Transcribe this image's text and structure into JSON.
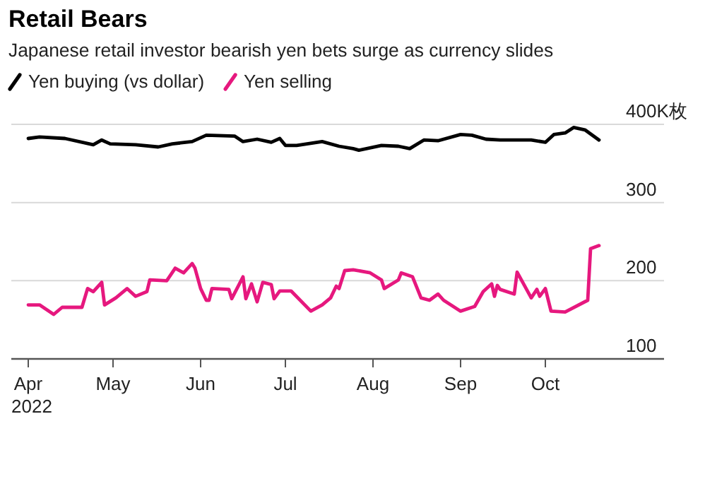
{
  "chart_data": {
    "type": "line",
    "title": "Retail Bears",
    "subtitle": "Japanese retail investor bearish yen bets surge as currency slides",
    "legend": "top left",
    "grid": "y",
    "line_style": "solid",
    "marker": "none",
    "xlim": [
      "2022-03-26",
      "2022-11-12"
    ],
    "ylim": [
      100,
      400
    ],
    "xticks": [
      {
        "value": "2022-04-01",
        "label": "Apr\n2022"
      },
      {
        "value": "2022-05-01",
        "label": "May"
      },
      {
        "value": "2022-06-01",
        "label": "Jun"
      },
      {
        "value": "2022-07-01",
        "label": "Jul"
      },
      {
        "value": "2022-08-01",
        "label": "Aug"
      },
      {
        "value": "2022-09-01",
        "label": "Sep"
      },
      {
        "value": "2022-10-01",
        "label": "Oct"
      }
    ],
    "yticks": [
      {
        "value": 100,
        "label": "100"
      },
      {
        "value": 200,
        "label": "200"
      },
      {
        "value": 300,
        "label": "300"
      },
      {
        "value": 400,
        "label": "400K枚"
      }
    ],
    "series": [
      {
        "name": "Yen buying (vs dollar)",
        "color": "#000000",
        "x": [
          "2022-04-01",
          "2022-04-05",
          "2022-04-14",
          "2022-04-24",
          "2022-04-27",
          "2022-04-30",
          "2022-05-09",
          "2022-05-17",
          "2022-05-22",
          "2022-05-29",
          "2022-06-03",
          "2022-06-13",
          "2022-06-16",
          "2022-06-21",
          "2022-06-26",
          "2022-06-29",
          "2022-07-01",
          "2022-07-05",
          "2022-07-14",
          "2022-07-20",
          "2022-07-25",
          "2022-07-27",
          "2022-08-04",
          "2022-08-10",
          "2022-08-14",
          "2022-08-19",
          "2022-08-24",
          "2022-09-01",
          "2022-09-05",
          "2022-09-10",
          "2022-09-15",
          "2022-09-26",
          "2022-10-01",
          "2022-10-04",
          "2022-10-08",
          "2022-10-11",
          "2022-10-15",
          "2022-10-20"
        ],
        "values": [
          382,
          384,
          382,
          374,
          380,
          375,
          374,
          371,
          375,
          378,
          386,
          385,
          378,
          381,
          377,
          382,
          373,
          373,
          378,
          372,
          369,
          367,
          373,
          372,
          369,
          380,
          379,
          387,
          386,
          381,
          380,
          380,
          377,
          387,
          389,
          396,
          393,
          380
        ]
      },
      {
        "name": "Yen selling",
        "color": "#e6187e",
        "x": [
          "2022-04-01",
          "2022-04-05",
          "2022-04-10",
          "2022-04-13",
          "2022-04-20",
          "2022-04-22",
          "2022-04-24",
          "2022-04-27",
          "2022-04-28",
          "2022-05-02",
          "2022-05-06",
          "2022-05-09",
          "2022-05-13",
          "2022-05-14",
          "2022-05-20",
          "2022-05-23",
          "2022-05-26",
          "2022-05-29",
          "2022-05-30",
          "2022-06-01",
          "2022-06-03",
          "2022-06-04",
          "2022-06-05",
          "2022-06-11",
          "2022-06-12",
          "2022-06-16",
          "2022-06-17",
          "2022-06-19",
          "2022-06-21",
          "2022-06-23",
          "2022-06-26",
          "2022-06-27",
          "2022-06-29",
          "2022-07-03",
          "2022-07-10",
          "2022-07-14",
          "2022-07-17",
          "2022-07-19",
          "2022-07-20",
          "2022-07-22",
          "2022-07-25",
          "2022-07-31",
          "2022-08-04",
          "2022-08-05",
          "2022-08-10",
          "2022-08-11",
          "2022-08-15",
          "2022-08-18",
          "2022-08-21",
          "2022-08-24",
          "2022-08-26",
          "2022-09-01",
          "2022-09-06",
          "2022-09-09",
          "2022-09-12",
          "2022-09-13",
          "2022-09-14",
          "2022-09-15",
          "2022-09-20",
          "2022-09-21",
          "2022-09-26",
          "2022-09-28",
          "2022-09-29",
          "2022-10-01",
          "2022-10-03",
          "2022-10-08",
          "2022-10-16",
          "2022-10-17",
          "2022-10-20"
        ],
        "values": [
          169,
          169,
          157,
          166,
          166,
          190,
          186,
          198,
          169,
          178,
          190,
          180,
          186,
          201,
          200,
          216,
          210,
          222,
          216,
          190,
          175,
          175,
          190,
          189,
          177,
          205,
          177,
          196,
          173,
          198,
          195,
          177,
          187,
          187,
          161,
          169,
          178,
          193,
          190,
          213,
          214,
          210,
          201,
          190,
          201,
          210,
          205,
          178,
          175,
          183,
          175,
          161,
          167,
          186,
          196,
          180,
          194,
          189,
          183,
          211,
          178,
          189,
          180,
          190,
          161,
          160,
          175,
          241,
          245
        ]
      }
    ]
  }
}
